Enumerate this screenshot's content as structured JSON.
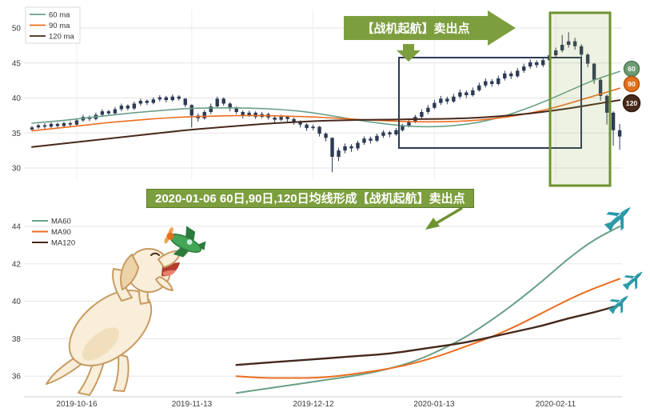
{
  "top_chart": {
    "legend": [
      {
        "label": "60 ma",
        "color": "#69a087"
      },
      {
        "label": "90 ma",
        "color": "#ed6d1f"
      },
      {
        "label": "120 ma",
        "color": "#46281c"
      }
    ],
    "y_ticks": [
      "30",
      "35",
      "40",
      "45",
      "50"
    ],
    "banner_label": "【战机起航】卖出点",
    "badges": [
      {
        "label": "60",
        "color": "#6d9c74",
        "border": "#4e7a55"
      },
      {
        "label": "90",
        "color": "#e2711d",
        "border": "#b35513"
      },
      {
        "label": "120",
        "color": "#4a2a1d",
        "border": "#2e1a10"
      }
    ],
    "colors": {
      "candle": "#2c3a54",
      "box_navy": "#2c3a54",
      "box_green": "#6f9231",
      "box_green_fill": "rgba(139,170,70,0.15)",
      "banner_bg": "#7d9e3f"
    }
  },
  "annotation": {
    "label": "2020-01-06 60日,90日,120日均线形成【战机起航】卖出点",
    "bg": "#7d9e3f",
    "arrow_color": "#6f9231"
  },
  "bottom_chart": {
    "legend": [
      {
        "label": "MA60",
        "color": "#69a087"
      },
      {
        "label": "MA90",
        "color": "#ed6d1f"
      },
      {
        "label": "MA120",
        "color": "#46281c"
      }
    ],
    "y_ticks": [
      "36",
      "38",
      "40",
      "42",
      "44"
    ],
    "x_ticks": [
      "2019-10-16",
      "2019-11-13",
      "2019-12-12",
      "2020-01-13",
      "2020-02-11"
    ]
  },
  "illustrations": {
    "dog": "puppy-catching-toy-plane",
    "toy_plane_color": "#43a556",
    "jet_color": "#2d9aa8",
    "jet_count": 3
  },
  "chart_data": [
    {
      "type": "candlestick",
      "title": "",
      "x_tick_labels": [
        "2019-10-16",
        "2019-11-13",
        "2019-12-12",
        "2020-01-13",
        "2020-02-11"
      ],
      "x_tick_days": [
        7,
        25,
        44,
        63,
        82
      ],
      "ylim": [
        28,
        52
      ],
      "y_ticks": [
        30,
        35,
        40,
        45,
        50
      ],
      "ohlc_format": [
        "open",
        "close",
        "low",
        "high"
      ],
      "candles": [
        [
          35.5,
          35.8,
          35.2,
          36.0
        ],
        [
          35.8,
          36.1,
          35.6,
          36.3
        ],
        [
          36.1,
          35.9,
          35.6,
          36.4
        ],
        [
          35.9,
          36.3,
          35.7,
          36.5
        ],
        [
          36.3,
          36.0,
          35.7,
          36.5
        ],
        [
          36.0,
          36.4,
          35.8,
          36.6
        ],
        [
          36.4,
          36.2,
          35.9,
          36.7
        ],
        [
          36.2,
          36.8,
          36.0,
          37.0
        ],
        [
          36.8,
          37.3,
          36.6,
          37.6
        ],
        [
          37.3,
          37.0,
          36.7,
          37.5
        ],
        [
          37.0,
          37.6,
          36.8,
          37.9
        ],
        [
          37.6,
          38.1,
          37.3,
          38.4
        ],
        [
          38.1,
          37.8,
          37.5,
          38.3
        ],
        [
          37.8,
          38.4,
          37.6,
          38.7
        ],
        [
          38.4,
          38.9,
          38.1,
          39.2
        ],
        [
          38.9,
          38.5,
          38.2,
          39.1
        ],
        [
          38.5,
          39.2,
          38.3,
          39.5
        ],
        [
          39.2,
          39.6,
          38.9,
          39.9
        ],
        [
          39.6,
          39.3,
          39.0,
          39.8
        ],
        [
          39.3,
          39.8,
          39.1,
          40.1
        ],
        [
          39.8,
          40.1,
          39.5,
          40.4
        ],
        [
          40.1,
          39.7,
          39.4,
          40.3
        ],
        [
          39.7,
          40.2,
          39.5,
          40.5
        ],
        [
          40.2,
          39.9,
          39.6,
          40.4
        ],
        [
          39.9,
          39.0,
          38.7,
          40.0
        ],
        [
          39.0,
          37.5,
          35.8,
          39.1
        ],
        [
          37.5,
          37.1,
          36.6,
          37.8
        ],
        [
          37.1,
          38.0,
          36.9,
          38.3
        ],
        [
          38.0,
          38.8,
          37.7,
          39.2
        ],
        [
          38.8,
          39.9,
          38.6,
          40.2
        ],
        [
          39.9,
          39.2,
          38.9,
          40.1
        ],
        [
          39.2,
          38.5,
          38.1,
          39.4
        ],
        [
          38.5,
          38.0,
          37.7,
          38.8
        ],
        [
          38.0,
          37.5,
          37.1,
          38.2
        ],
        [
          37.5,
          37.9,
          37.3,
          38.2
        ],
        [
          37.9,
          37.3,
          37.0,
          38.1
        ],
        [
          37.3,
          37.7,
          37.1,
          38.0
        ],
        [
          37.7,
          37.2,
          36.9,
          37.9
        ],
        [
          37.2,
          36.9,
          36.5,
          37.4
        ],
        [
          36.9,
          37.3,
          36.7,
          37.6
        ],
        [
          37.3,
          37.0,
          36.6,
          37.5
        ],
        [
          37.0,
          36.6,
          36.2,
          37.2
        ],
        [
          36.6,
          36.2,
          35.8,
          36.8
        ],
        [
          36.2,
          35.7,
          35.3,
          36.4
        ],
        [
          35.7,
          35.9,
          35.4,
          36.2
        ],
        [
          35.9,
          34.9,
          34.5,
          36.0
        ],
        [
          34.9,
          34.3,
          33.8,
          35.1
        ],
        [
          34.3,
          31.6,
          29.4,
          34.4
        ],
        [
          31.6,
          32.5,
          31.0,
          32.9
        ],
        [
          32.5,
          33.1,
          32.1,
          33.5
        ],
        [
          33.1,
          32.8,
          32.3,
          33.4
        ],
        [
          32.8,
          33.6,
          32.5,
          33.9
        ],
        [
          33.6,
          34.2,
          33.3,
          34.5
        ],
        [
          34.2,
          33.9,
          33.5,
          34.5
        ],
        [
          33.9,
          34.6,
          33.7,
          34.9
        ],
        [
          34.6,
          35.1,
          34.3,
          35.4
        ],
        [
          35.1,
          34.8,
          34.4,
          35.3
        ],
        [
          34.8,
          35.4,
          34.6,
          35.7
        ],
        [
          35.4,
          36.0,
          35.2,
          36.3
        ],
        [
          36.0,
          36.6,
          35.8,
          36.9
        ],
        [
          36.6,
          37.3,
          36.4,
          37.6
        ],
        [
          37.3,
          38.0,
          37.1,
          38.4
        ],
        [
          38.0,
          38.6,
          37.7,
          39.0
        ],
        [
          38.6,
          39.3,
          38.4,
          39.7
        ],
        [
          39.3,
          39.9,
          39.0,
          40.3
        ],
        [
          39.9,
          39.5,
          39.1,
          40.2
        ],
        [
          39.5,
          40.2,
          39.3,
          40.6
        ],
        [
          40.2,
          40.8,
          39.9,
          41.2
        ],
        [
          40.8,
          40.4,
          40.0,
          41.1
        ],
        [
          40.4,
          41.1,
          40.2,
          41.5
        ],
        [
          41.1,
          41.8,
          40.9,
          42.2
        ],
        [
          41.8,
          42.4,
          41.5,
          42.8
        ],
        [
          42.4,
          42.0,
          41.6,
          42.7
        ],
        [
          42.0,
          42.8,
          41.8,
          43.2
        ],
        [
          42.8,
          43.5,
          42.5,
          43.9
        ],
        [
          43.5,
          43.1,
          42.7,
          43.8
        ],
        [
          43.1,
          43.9,
          42.9,
          44.3
        ],
        [
          43.9,
          44.5,
          43.6,
          44.9
        ],
        [
          44.5,
          45.1,
          44.2,
          45.5
        ],
        [
          45.1,
          44.7,
          44.3,
          45.4
        ],
        [
          44.7,
          45.4,
          44.4,
          45.8
        ],
        [
          45.4,
          46.1,
          45.1,
          46.5
        ],
        [
          46.1,
          46.8,
          45.8,
          47.2
        ],
        [
          46.8,
          47.6,
          46.5,
          49.0
        ],
        [
          47.6,
          48.1,
          47.2,
          49.4
        ],
        [
          48.1,
          47.4,
          46.9,
          48.6
        ],
        [
          47.4,
          46.2,
          45.8,
          47.7
        ],
        [
          46.2,
          44.9,
          44.4,
          46.4
        ],
        [
          44.9,
          42.6,
          42.0,
          45.0
        ],
        [
          42.6,
          40.3,
          39.6,
          42.8
        ],
        [
          40.3,
          37.9,
          36.2,
          40.5
        ],
        [
          37.9,
          35.4,
          33.2,
          38.1
        ],
        [
          35.4,
          34.5,
          32.6,
          36.3
        ]
      ],
      "series": [
        {
          "name": "60 ma",
          "color": "#69a087",
          "width": 1.6,
          "sample_days": [
            0,
            4,
            8,
            12,
            16,
            20,
            24,
            28,
            32,
            36,
            40,
            44,
            48,
            52,
            56,
            60,
            64,
            68,
            72,
            76,
            80,
            84,
            88,
            92
          ],
          "values": [
            36.4,
            36.7,
            37.1,
            37.5,
            37.9,
            38.2,
            38.5,
            38.6,
            38.6,
            38.5,
            38.3,
            37.9,
            37.3,
            36.7,
            36.2,
            35.9,
            35.9,
            36.2,
            36.9,
            38.0,
            39.4,
            41.0,
            42.6,
            43.8
          ]
        },
        {
          "name": "90 ma",
          "color": "#ed6d1f",
          "width": 1.6,
          "sample_days": [
            0,
            4,
            8,
            12,
            16,
            20,
            24,
            28,
            32,
            36,
            40,
            44,
            48,
            52,
            56,
            60,
            64,
            68,
            72,
            76,
            80,
            84,
            88,
            92
          ],
          "values": [
            35.3,
            35.7,
            36.1,
            36.5,
            36.8,
            37.1,
            37.3,
            37.4,
            37.5,
            37.5,
            37.4,
            37.3,
            37.1,
            36.9,
            36.7,
            36.6,
            36.6,
            36.7,
            37.0,
            37.5,
            38.2,
            39.2,
            40.3,
            41.4
          ]
        },
        {
          "name": "120 ma",
          "color": "#46281c",
          "width": 2.0,
          "sample_days": [
            0,
            4,
            8,
            12,
            16,
            20,
            24,
            28,
            32,
            36,
            40,
            44,
            48,
            52,
            56,
            60,
            64,
            68,
            72,
            76,
            80,
            84,
            88,
            92
          ],
          "values": [
            33.0,
            33.4,
            33.8,
            34.2,
            34.6,
            35.0,
            35.4,
            35.7,
            36.0,
            36.3,
            36.5,
            36.7,
            36.8,
            36.9,
            36.9,
            37.0,
            37.0,
            37.1,
            37.3,
            37.6,
            38.0,
            38.5,
            39.1,
            39.7
          ]
        }
      ]
    },
    {
      "type": "line",
      "title": "",
      "x_tick_labels": [
        "2019-10-16",
        "2019-11-13",
        "2019-12-12",
        "2020-01-13",
        "2020-02-11"
      ],
      "x_tick_days": [
        7,
        25,
        44,
        63,
        82
      ],
      "ylim": [
        35,
        45
      ],
      "y_ticks": [
        36,
        38,
        40,
        42,
        44
      ],
      "sample_days": [
        32,
        36,
        40,
        44,
        48,
        52,
        56,
        60,
        64,
        68,
        72,
        76,
        80,
        84,
        88,
        92
      ],
      "series": [
        {
          "name": "MA60",
          "color": "#69a087",
          "width": 2.0,
          "values": [
            35.1,
            35.3,
            35.5,
            35.7,
            35.9,
            36.1,
            36.4,
            36.8,
            37.4,
            38.1,
            39.0,
            40.0,
            41.1,
            42.3,
            43.3,
            44.0
          ]
        },
        {
          "name": "MA90",
          "color": "#ed6d1f",
          "width": 2.0,
          "values": [
            36.0,
            35.9,
            35.9,
            35.9,
            36.0,
            36.2,
            36.4,
            36.7,
            37.1,
            37.6,
            38.1,
            38.7,
            39.4,
            40.1,
            40.7,
            41.2
          ]
        },
        {
          "name": "MA120",
          "color": "#46281c",
          "width": 2.4,
          "values": [
            36.6,
            36.7,
            36.8,
            36.9,
            37.0,
            37.1,
            37.2,
            37.4,
            37.6,
            37.8,
            38.1,
            38.4,
            38.7,
            39.1,
            39.4,
            39.8
          ]
        }
      ]
    }
  ]
}
